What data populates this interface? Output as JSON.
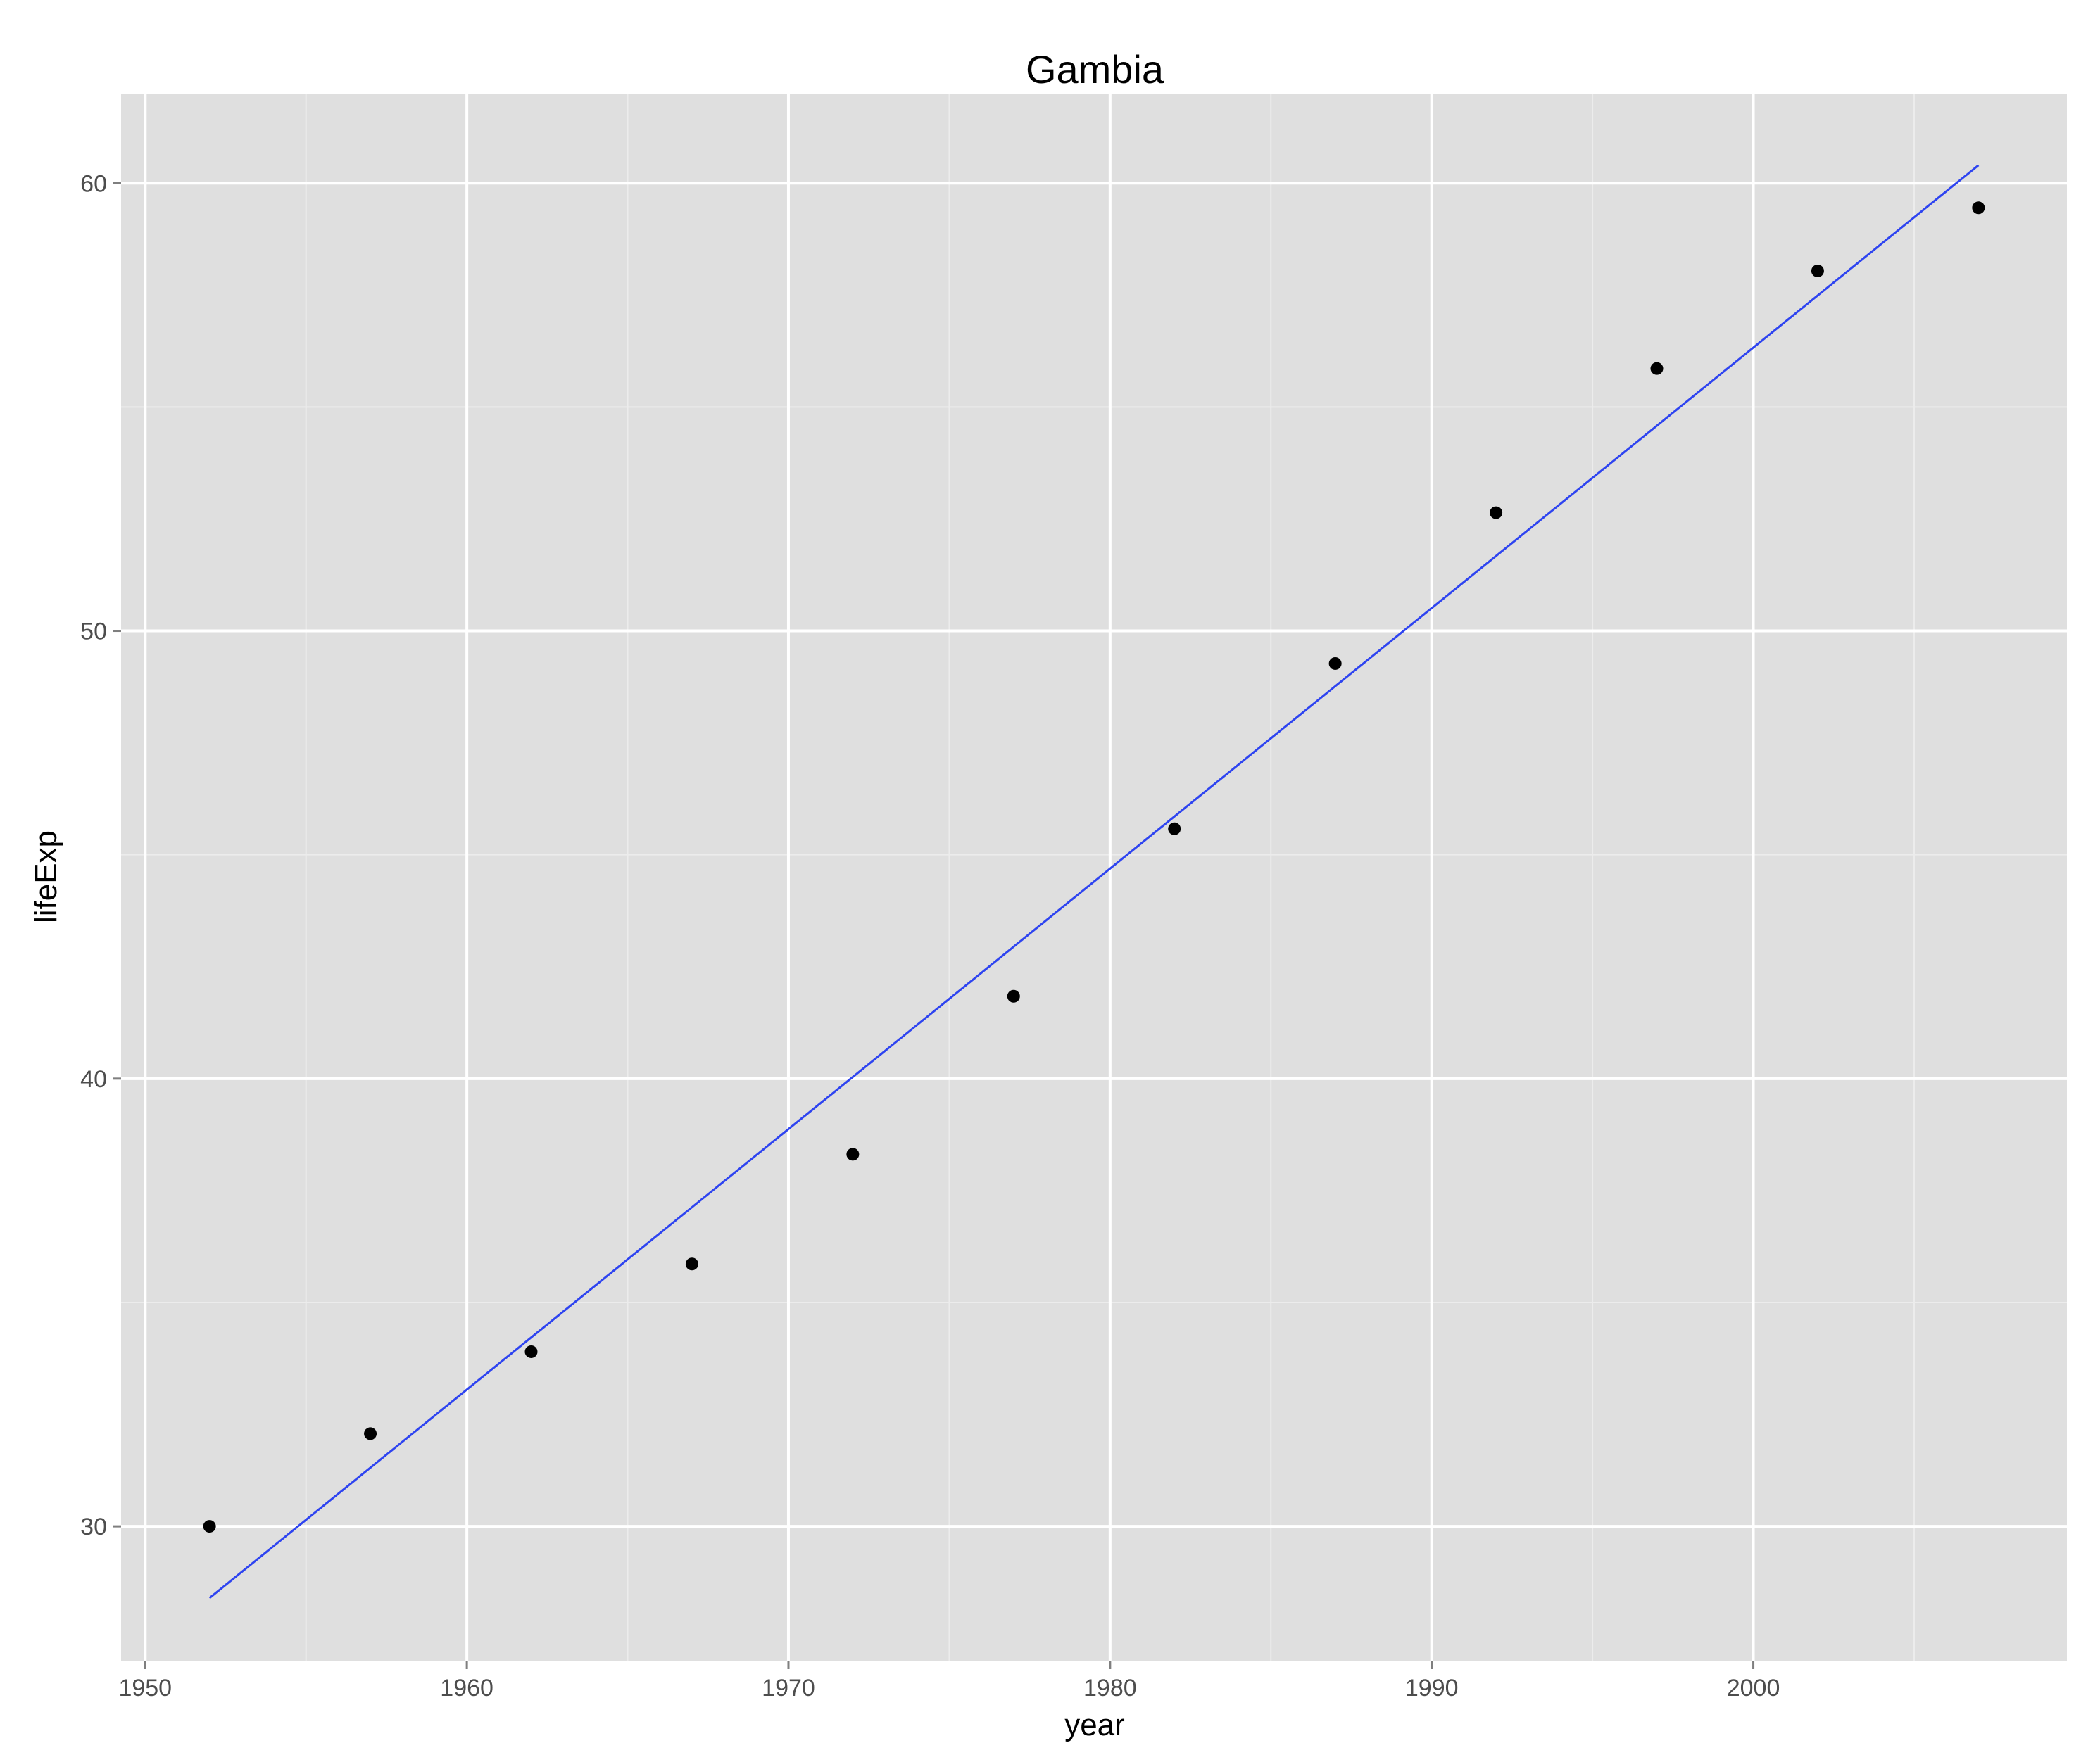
{
  "chart_data": {
    "type": "scatter",
    "title": "Gambia",
    "xlabel": "year",
    "ylabel": "lifeExp",
    "xlim": [
      1949.25,
      2009.75
    ],
    "ylim": [
      27.0,
      62.0
    ],
    "x_ticks": [
      1950,
      1960,
      1970,
      1980,
      1990,
      2000
    ],
    "x_minor_ticks": [
      1955,
      1965,
      1975,
      1985,
      1995,
      2005
    ],
    "y_ticks": [
      30,
      40,
      50,
      60
    ],
    "y_minor_ticks": [
      35,
      45,
      55
    ],
    "grid": true,
    "legend": "none",
    "points": {
      "x": [
        1952,
        1957,
        1962,
        1967,
        1972,
        1977,
        1982,
        1987,
        1992,
        1997,
        2002,
        2007
      ],
      "y": [
        30.0,
        32.07,
        33.9,
        35.86,
        38.31,
        41.84,
        45.58,
        49.27,
        52.64,
        55.86,
        58.04,
        59.45
      ]
    },
    "trend_line": {
      "x": [
        1952,
        2007
      ],
      "y": [
        28.4,
        60.4
      ]
    },
    "colors": {
      "panel": "#dfdfdf",
      "grid_major": "#ffffff",
      "grid_minor": "#ececec",
      "points": "#000000",
      "trend_line": "#2e44f0",
      "tick_label": "#4d4d4d"
    }
  }
}
